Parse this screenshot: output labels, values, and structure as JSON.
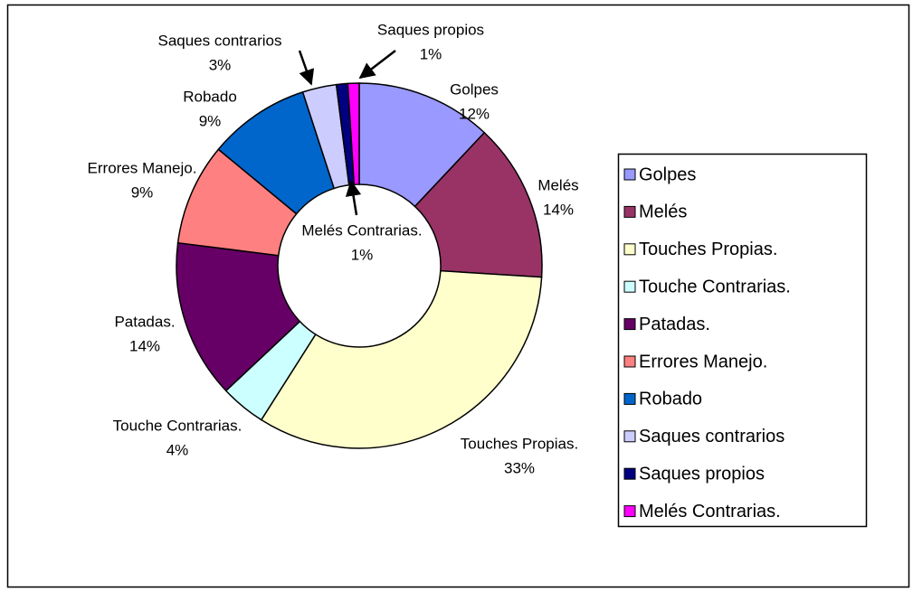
{
  "chart_data": {
    "type": "doughnut",
    "categories": [
      "Golpes",
      "Melés",
      "Touches Propias.",
      "Touche Contrarias.",
      "Patadas.",
      "Errores Manejo.",
      "Robado",
      "Saques contrarios",
      "Saques propios",
      "Melés Contrarias."
    ],
    "values": [
      12,
      14,
      33,
      4,
      14,
      9,
      9,
      3,
      1,
      1
    ],
    "value_labels": [
      "12%",
      "14%",
      "33%",
      "4%",
      "14%",
      "9%",
      "9%",
      "3%",
      "1%",
      "1%"
    ],
    "colors": [
      "#9999ff",
      "#993366",
      "#ffffcc",
      "#ccffff",
      "#660066",
      "#ff8080",
      "#0066cc",
      "#ccccff",
      "#000080",
      "#ff00ff"
    ],
    "legend": "right"
  }
}
